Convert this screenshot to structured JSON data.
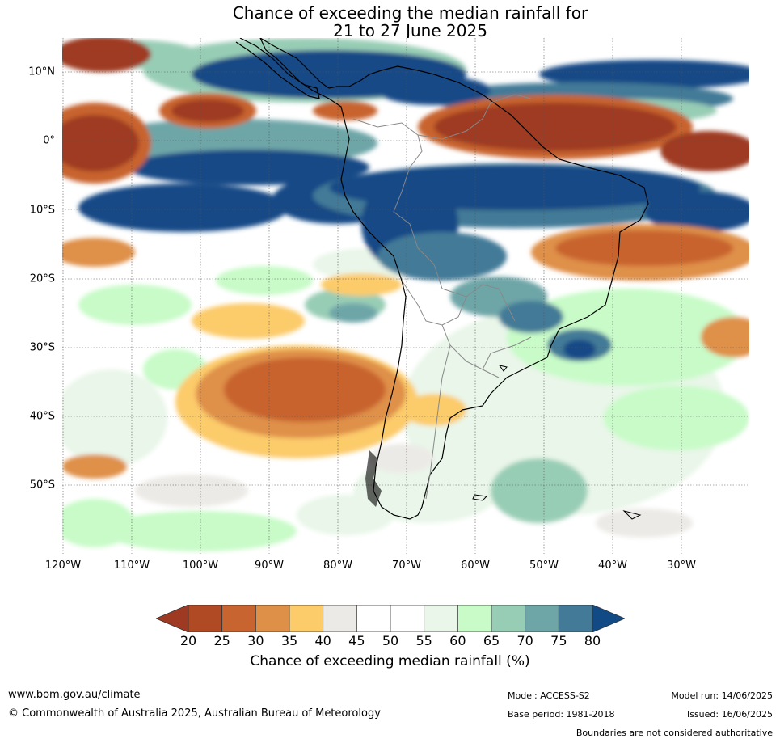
{
  "title": {
    "line1": "Chance of exceeding the median rainfall for",
    "line2": "21 to 27 June 2025"
  },
  "axes": {
    "lat_labels": [
      "10°N",
      "0°",
      "10°S",
      "20°S",
      "30°S",
      "40°S",
      "50°S"
    ],
    "lon_labels": [
      "120°W",
      "110°W",
      "100°W",
      "90°W",
      "80°W",
      "70°W",
      "60°W",
      "50°W",
      "40°W",
      "30°W"
    ]
  },
  "colorbar": {
    "ticks": [
      "20",
      "25",
      "30",
      "35",
      "40",
      "45",
      "50",
      "55",
      "60",
      "65",
      "70",
      "75",
      "80"
    ],
    "colors": [
      "#9e3a22",
      "#b04a24",
      "#c8642f",
      "#df9048",
      "#fccb6a",
      "#eceae6",
      "#ffffff",
      "#ffffff",
      "#e9f6e9",
      "#c8fbc8",
      "#98cdb5",
      "#6ea6a8",
      "#437a97",
      "#124a86"
    ],
    "title": "Chance of exceeding median rainfall (%)"
  },
  "footer": {
    "url": "www.bom.gov.au/climate",
    "copyright": "© Commonwealth of Australia 2025, Australian Bureau of Meteorology",
    "model": "Model: ACCESS-S2",
    "base_period": "Base period: 1981-2018",
    "model_run": "Model run: 14/06/2025",
    "issued": "Issued: 16/06/2025",
    "disclaimer": "Boundaries are not considered authoritative"
  }
}
